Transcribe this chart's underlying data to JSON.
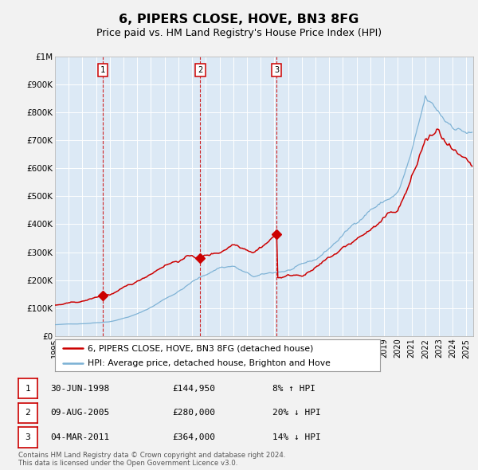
{
  "title": "6, PIPERS CLOSE, HOVE, BN3 8FG",
  "subtitle": "Price paid vs. HM Land Registry's House Price Index (HPI)",
  "title_fontsize": 11.5,
  "subtitle_fontsize": 9,
  "red_color": "#cc0000",
  "blue_color": "#7ab0d4",
  "plot_bg_color": "#dce9f5",
  "outer_bg_color": "#f2f2f2",
  "ylim": [
    0,
    1000000
  ],
  "yticks": [
    0,
    100000,
    200000,
    300000,
    400000,
    500000,
    600000,
    700000,
    800000,
    900000,
    1000000
  ],
  "ytick_labels": [
    "£0",
    "£100K",
    "£200K",
    "£300K",
    "£400K",
    "£500K",
    "£600K",
    "£700K",
    "£800K",
    "£900K",
    "£1M"
  ],
  "xstart": 1995.0,
  "xend": 2025.5,
  "sale_dates": [
    1998.5,
    2005.6,
    2011.17
  ],
  "sale_prices": [
    144950,
    280000,
    364000
  ],
  "sale_labels": [
    "1",
    "2",
    "3"
  ],
  "sale_info": [
    {
      "num": "1",
      "date": "30-JUN-1998",
      "price": "£144,950",
      "hpi": "8% ↑ HPI"
    },
    {
      "num": "2",
      "date": "09-AUG-2005",
      "price": "£280,000",
      "hpi": "20% ↓ HPI"
    },
    {
      "num": "3",
      "date": "04-MAR-2011",
      "price": "£364,000",
      "hpi": "14% ↓ HPI"
    }
  ],
  "legend_label_red": "6, PIPERS CLOSE, HOVE, BN3 8FG (detached house)",
  "legend_label_blue": "HPI: Average price, detached house, Brighton and Hove",
  "footer_line1": "Contains HM Land Registry data © Crown copyright and database right 2024.",
  "footer_line2": "This data is licensed under the Open Government Licence v3.0."
}
